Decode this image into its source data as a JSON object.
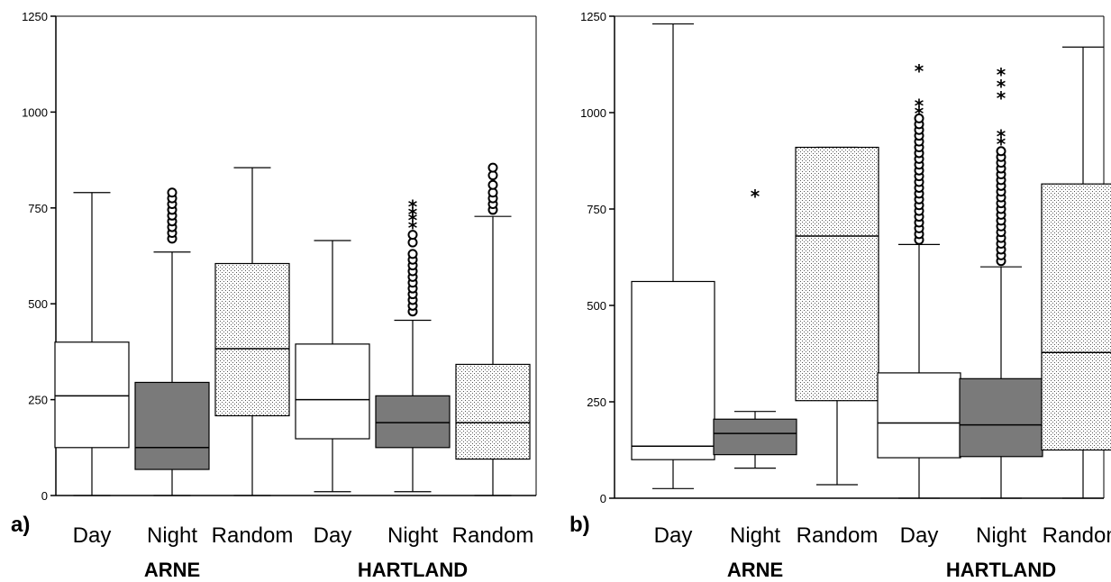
{
  "chart_data": [
    {
      "type": "boxplot",
      "panel_label": "a)",
      "ylim": [
        0,
        1250
      ],
      "yticks": [
        0,
        250,
        500,
        750,
        1000,
        1250
      ],
      "yticks_labels": [
        "0",
        "250",
        "500",
        "750",
        "1000",
        "1250"
      ],
      "categories": [
        "Day",
        "Night",
        "Random",
        "Day",
        "Night",
        "Random"
      ],
      "groups": [
        {
          "label": "ARNE",
          "categories": [
            "Day",
            "Night",
            "Random"
          ]
        },
        {
          "label": "HARTLAND",
          "categories": [
            "Day",
            "Night",
            "Random"
          ]
        }
      ],
      "boxes": [
        {
          "group": "ARNE",
          "category": "Day",
          "whisker_low": 0,
          "q1": 125,
          "median": 260,
          "q3": 400,
          "whisker_high": 790,
          "fill": "white",
          "outliers_circle": [],
          "outliers_star": []
        },
        {
          "group": "ARNE",
          "category": "Night",
          "whisker_low": 0,
          "q1": 68,
          "median": 125,
          "q3": 295,
          "whisker_high": 635,
          "fill": "dark",
          "outliers_circle": [
            670,
            685,
            700,
            715,
            730,
            745,
            760,
            775,
            790
          ],
          "outliers_star": []
        },
        {
          "group": "ARNE",
          "category": "Random",
          "whisker_low": 0,
          "q1": 208,
          "median": 383,
          "q3": 605,
          "whisker_high": 855,
          "fill": "dotted",
          "outliers_circle": [],
          "outliers_star": []
        },
        {
          "group": "HARTLAND",
          "category": "Day",
          "whisker_low": 10,
          "q1": 148,
          "median": 250,
          "q3": 395,
          "whisker_high": 665,
          "fill": "white",
          "outliers_circle": [],
          "outliers_star": []
        },
        {
          "group": "HARTLAND",
          "category": "Night",
          "whisker_low": 10,
          "q1": 125,
          "median": 190,
          "q3": 260,
          "whisker_high": 457,
          "fill": "dark",
          "outliers_circle": [
            480,
            495,
            510,
            525,
            540,
            555,
            570,
            585,
            600,
            615,
            630,
            660,
            680
          ],
          "outliers_star": [
            700,
            720,
            735,
            755
          ]
        },
        {
          "group": "HARTLAND",
          "category": "Random",
          "whisker_low": 0,
          "q1": 95,
          "median": 190,
          "q3": 342,
          "whisker_high": 728,
          "fill": "dotted",
          "outliers_circle": [
            745,
            760,
            775,
            790,
            810,
            835,
            855
          ],
          "outliers_star": []
        }
      ]
    },
    {
      "type": "boxplot",
      "panel_label": "b)",
      "ylim": [
        0,
        1250
      ],
      "yticks": [
        0,
        250,
        500,
        750,
        1000,
        1250
      ],
      "yticks_labels": [
        "0",
        "250",
        "500",
        "750",
        "1000",
        "1250"
      ],
      "categories": [
        "Day",
        "Night",
        "Random",
        "Day",
        "Night",
        "Random"
      ],
      "groups": [
        {
          "label": "ARNE",
          "categories": [
            "Day",
            "Night",
            "Random"
          ]
        },
        {
          "label": "HARTLAND",
          "categories": [
            "Day",
            "Night",
            "Random"
          ]
        }
      ],
      "boxes": [
        {
          "group": "ARNE",
          "category": "Day",
          "whisker_low": 25,
          "q1": 100,
          "median": 135,
          "q3": 562,
          "whisker_high": 1230,
          "fill": "white",
          "outliers_circle": [],
          "outliers_star": []
        },
        {
          "group": "ARNE",
          "category": "Night",
          "whisker_low": 78,
          "q1": 113,
          "median": 168,
          "q3": 205,
          "whisker_high": 225,
          "fill": "dark",
          "outliers_circle": [],
          "outliers_star": [
            785
          ]
        },
        {
          "group": "ARNE",
          "category": "Random",
          "whisker_low": 35,
          "q1": 253,
          "median": 680,
          "q3": 910,
          "whisker_high": 910,
          "fill": "dotted",
          "outliers_circle": [],
          "outliers_star": []
        },
        {
          "group": "HARTLAND",
          "category": "Day",
          "whisker_low": 0,
          "q1": 105,
          "median": 195,
          "q3": 325,
          "whisker_high": 658,
          "fill": "white",
          "outliers_circle": [
            670,
            685,
            700,
            715,
            730,
            745,
            760,
            775,
            790,
            805,
            820,
            835,
            850,
            865,
            880,
            895,
            910,
            925,
            940,
            955,
            970,
            985
          ],
          "outliers_star": [
            1000,
            1020,
            1110
          ]
        },
        {
          "group": "HARTLAND",
          "category": "Night",
          "whisker_low": 0,
          "q1": 108,
          "median": 190,
          "q3": 310,
          "whisker_high": 600,
          "fill": "dark",
          "outliers_circle": [
            615,
            630,
            645,
            660,
            675,
            690,
            705,
            720,
            735,
            750,
            765,
            780,
            795,
            810,
            825,
            840,
            855,
            870,
            885,
            900
          ],
          "outliers_star": [
            920,
            940,
            1040,
            1070,
            1100
          ]
        },
        {
          "group": "HARTLAND",
          "category": "Random",
          "whisker_low": 0,
          "q1": 125,
          "median": 378,
          "q3": 815,
          "whisker_high": 1170,
          "fill": "dotted",
          "outliers_circle": [],
          "outliers_star": []
        }
      ]
    }
  ]
}
